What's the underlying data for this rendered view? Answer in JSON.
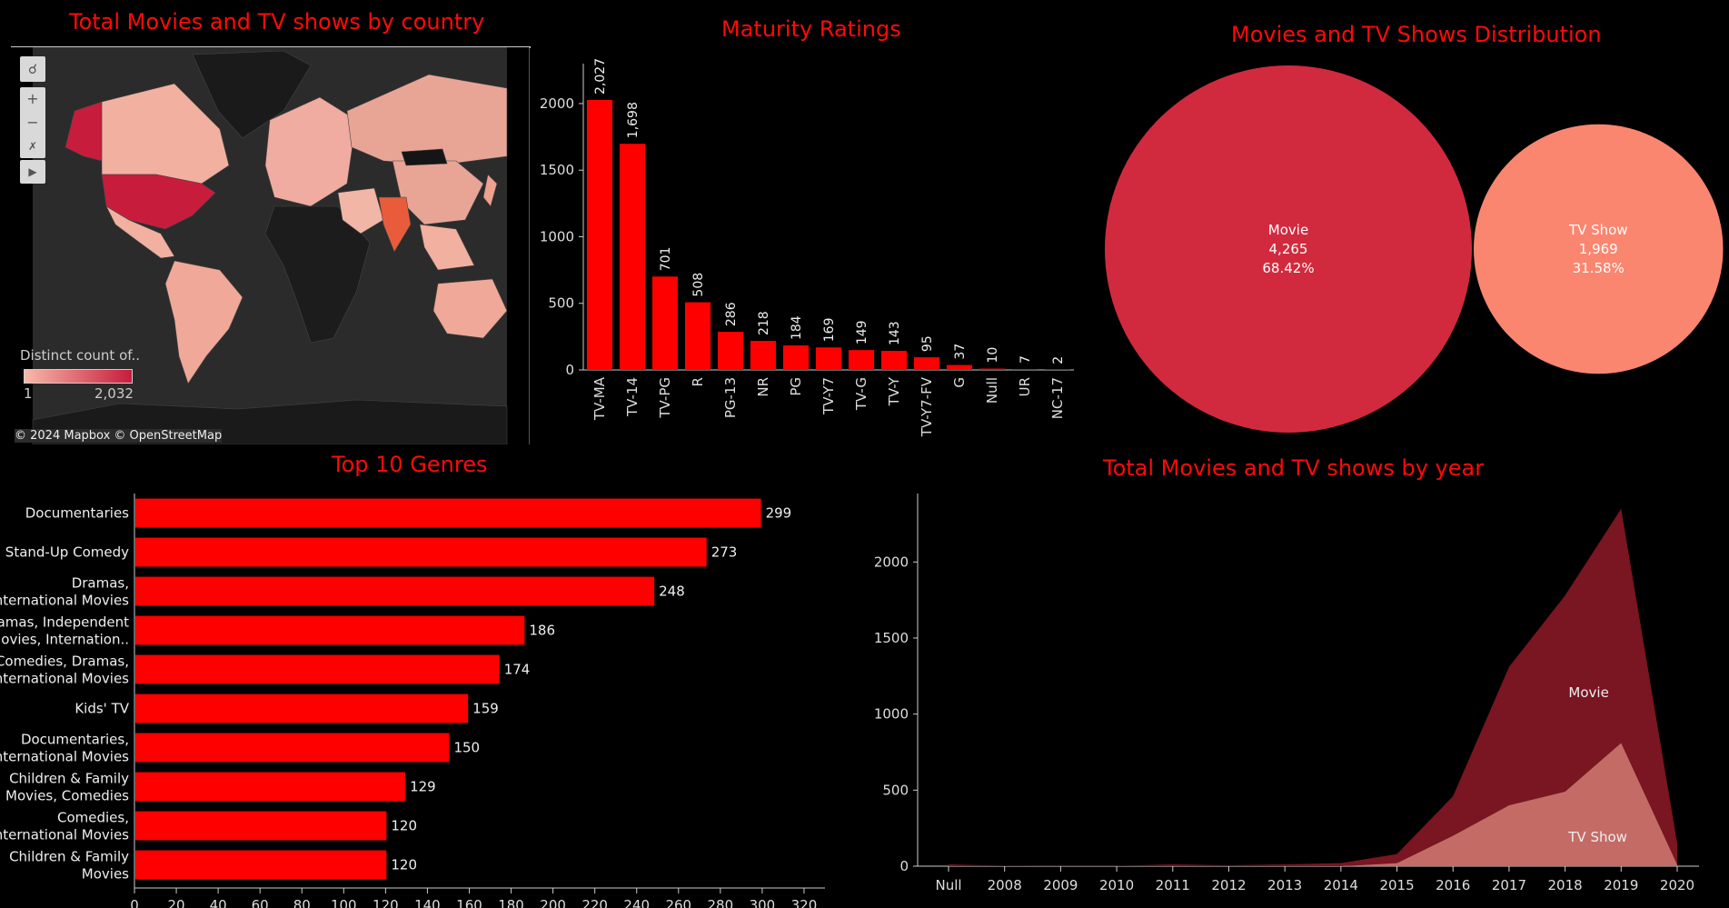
{
  "map": {
    "title": "Total Movies and TV shows by country",
    "legend_title": "Distinct count of..",
    "legend_min": "1",
    "legend_max": "2,032",
    "attribution": "© 2024 Mapbox © OpenStreetMap",
    "tools": {
      "search": "search-icon",
      "zoom_in": "plus-icon",
      "zoom_out": "minus-icon",
      "reset": "reset-axes-icon",
      "expand": "play-icon"
    },
    "colors": {
      "low": "#f7b9a9",
      "high": "#c81c3c",
      "no_data": "#1a1a1a",
      "land": "#2b2b2b"
    }
  },
  "chart_data": [
    {
      "type": "bar",
      "id": "maturity",
      "title": "Maturity Ratings",
      "categories": [
        "TV-MA",
        "TV-14",
        "TV-PG",
        "R",
        "PG-13",
        "NR",
        "PG",
        "TV-Y7",
        "TV-G",
        "TV-Y",
        "TV-Y7-FV",
        "G",
        "Null",
        "UR",
        "NC-17"
      ],
      "values": [
        2027,
        1698,
        701,
        508,
        286,
        218,
        184,
        169,
        149,
        143,
        95,
        37,
        10,
        7,
        2
      ],
      "labels": [
        "2,027",
        "1,698",
        "701",
        "508",
        "286",
        "218",
        "184",
        "169",
        "149",
        "143",
        "95",
        "37",
        "10",
        "7",
        "2"
      ],
      "y_ticks": [
        "0",
        "500",
        "1000",
        "1500",
        "2000"
      ],
      "ylim": [
        0,
        2300
      ],
      "color": "#ff0000"
    },
    {
      "type": "bubble",
      "id": "distribution",
      "title": "Movies and TV Shows Distribution",
      "items": [
        {
          "name": "Movie",
          "value": 4265,
          "value_label": "4,265",
          "percent": "68.42%",
          "color": "#d12a3e"
        },
        {
          "name": "TV Show",
          "value": 1969,
          "value_label": "1,969",
          "percent": "31.58%",
          "color": "#fa8670"
        }
      ]
    },
    {
      "type": "bar",
      "id": "genres",
      "orientation": "horizontal",
      "title": "Top 10 Genres",
      "categories": [
        [
          "Documentaries"
        ],
        [
          "Stand-Up Comedy"
        ],
        [
          "Dramas,",
          "International Movies"
        ],
        [
          "Dramas, Independent",
          "Movies, Internation.."
        ],
        [
          "Comedies, Dramas,",
          "International Movies"
        ],
        [
          "Kids' TV"
        ],
        [
          "Documentaries,",
          "International Movies"
        ],
        [
          "Children & Family",
          "Movies, Comedies"
        ],
        [
          "Comedies,",
          "International Movies"
        ],
        [
          "Children & Family",
          "Movies"
        ]
      ],
      "values": [
        299,
        273,
        248,
        186,
        174,
        159,
        150,
        129,
        120,
        120
      ],
      "x_ticks": [
        "0",
        "20",
        "40",
        "60",
        "80",
        "100",
        "120",
        "140",
        "160",
        "180",
        "200",
        "220",
        "240",
        "260",
        "280",
        "300",
        "320"
      ],
      "xlim": [
        0,
        330
      ],
      "color": "#ff0000"
    },
    {
      "type": "area",
      "id": "by_year",
      "title": "Total Movies and TV shows by year",
      "x": [
        "Null",
        "2008",
        "2009",
        "2010",
        "2011",
        "2012",
        "2013",
        "2014",
        "2015",
        "2016",
        "2017",
        "2018",
        "2019",
        "2020"
      ],
      "series": [
        {
          "name": "Movie",
          "values": [
            12,
            3,
            2,
            2,
            12,
            6,
            12,
            20,
            60,
            260,
            910,
            1290,
            1540,
            140
          ],
          "color": "#7a1522"
        },
        {
          "name": "TV Show",
          "values": [
            0,
            0,
            0,
            0,
            0,
            0,
            0,
            0,
            20,
            200,
            400,
            490,
            810,
            10
          ],
          "color": "#c46b66"
        }
      ],
      "y_ticks": [
        "0",
        "500",
        "1000",
        "1500",
        "2000"
      ],
      "ylim": [
        0,
        2450
      ]
    }
  ]
}
